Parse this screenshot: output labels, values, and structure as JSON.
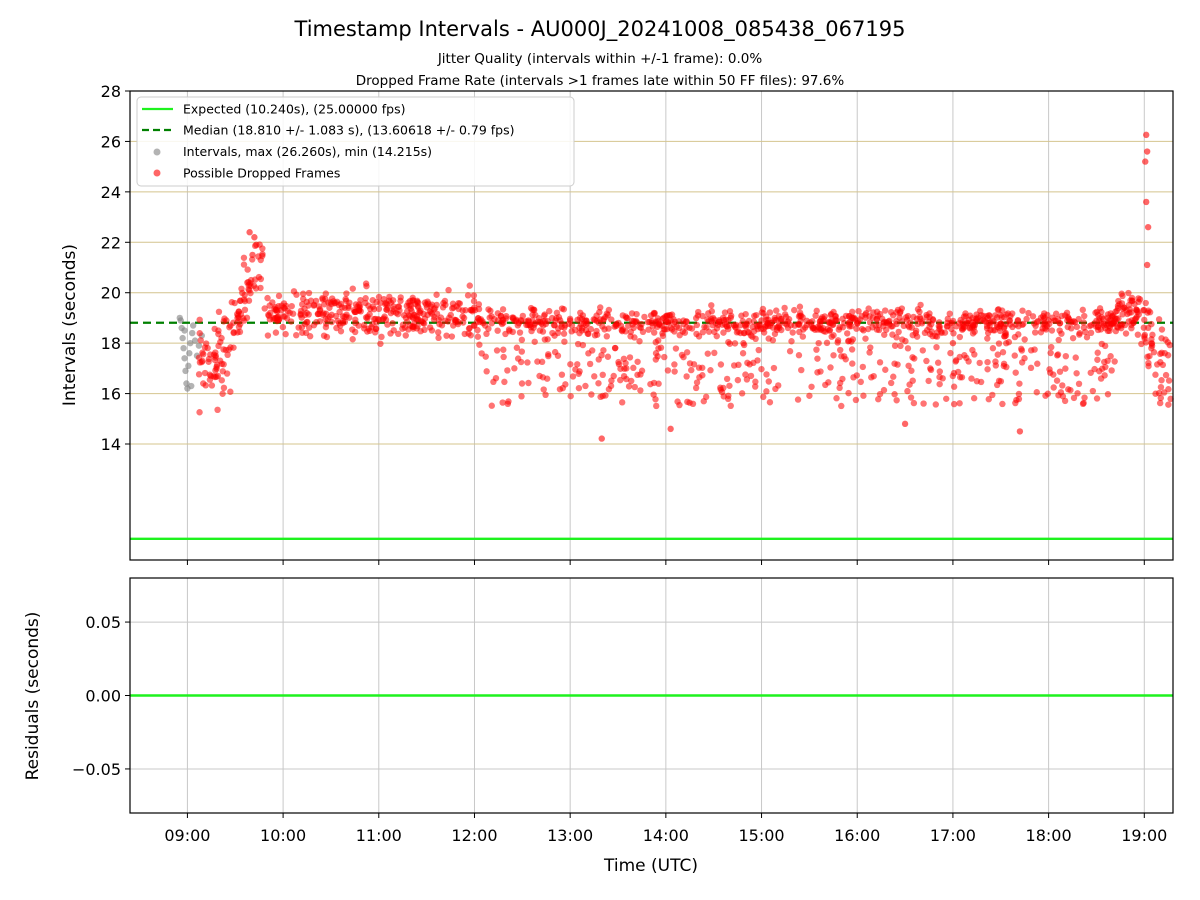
{
  "chart_data": [
    {
      "type": "scatter",
      "title": "Timestamp Intervals - AU000J_20241008_085438_067195",
      "subtitle_lines": [
        "Jitter Quality (intervals within +/-1 frame): 0.0%",
        "Dropped Frame Rate (intervals >1 frames late within 50 FF files): 97.6%"
      ],
      "xlabel": "",
      "ylabel": "Intervals (seconds)",
      "xlim_hours": [
        8.4,
        19.3
      ],
      "ylim": [
        9.4,
        28
      ],
      "yticks": [
        14,
        16,
        18,
        20,
        22,
        24,
        26,
        28
      ],
      "xticks_hours": [
        9,
        10,
        11,
        12,
        13,
        14,
        15,
        16,
        17,
        18,
        19
      ],
      "grid": "on",
      "hgrid_color": "#d4c48e",
      "vgrid_color": "#c8c8c8",
      "legend_placement": "top-left",
      "legend": [
        "Expected (10.240s), (25.00000 fps)",
        "Median (18.810 +/- 1.083 s), (13.60618 +/- 0.79 fps)",
        "Intervals, max (26.260s), min (14.215s)",
        "Possible Dropped Frames"
      ],
      "expected_interval": 10.24,
      "median_interval": 18.81,
      "colors": {
        "expected": "#1ef21e",
        "median": "#008000",
        "intervals": "#808080",
        "dropped": "#ff0000"
      },
      "series": [
        {
          "name": "Intervals, max (26.260s), min (14.215s)",
          "points": [
            [
              8.93,
              18.9
            ],
            [
              8.94,
              18.6
            ],
            [
              8.95,
              18.2
            ],
            [
              8.96,
              17.8
            ],
            [
              8.97,
              17.4
            ],
            [
              8.98,
              16.9
            ],
            [
              8.99,
              16.4
            ],
            [
              9.0,
              16.2
            ],
            [
              9.01,
              17.1
            ],
            [
              9.02,
              17.6
            ],
            [
              9.03,
              18.0
            ],
            [
              9.05,
              18.4
            ],
            [
              9.06,
              18.7
            ],
            [
              9.08,
              18.1
            ],
            [
              9.1,
              17.5
            ],
            [
              9.12,
              17.9
            ],
            [
              9.15,
              18.3
            ],
            [
              8.92,
              19.0
            ],
            [
              8.97,
              18.5
            ],
            [
              9.04,
              16.3
            ]
          ]
        },
        {
          "name": "Possible Dropped Frames",
          "summary": "dense band of interval values roughly 14.2 s to 22.4 s from about 09:10 to 19:15 UTC, spikes near 09:40 (about 22.4 s) and 19:02 (up to 26.26 s)",
          "points": [
            [
              9.65,
              22.4
            ],
            [
              9.7,
              22.2
            ],
            [
              9.72,
              21.9
            ],
            [
              9.68,
              21.5
            ],
            [
              19.02,
              26.26
            ],
            [
              19.03,
              25.6
            ],
            [
              19.01,
              25.2
            ],
            [
              19.02,
              23.6
            ],
            [
              19.04,
              22.6
            ],
            [
              19.03,
              21.1
            ],
            [
              13.33,
              14.215
            ],
            [
              14.05,
              14.6
            ],
            [
              16.5,
              14.8
            ],
            [
              17.7,
              14.5
            ],
            [
              12.0,
              18.7
            ],
            [
              13.0,
              18.9
            ],
            [
              15.0,
              18.9
            ],
            [
              16.0,
              18.8
            ],
            [
              17.0,
              18.0
            ],
            [
              18.0,
              18.9
            ]
          ]
        }
      ]
    },
    {
      "type": "line",
      "title": "",
      "xlabel": "Time (UTC)",
      "ylabel": "Residuals (seconds)",
      "ylim": [
        -0.08,
        0.08
      ],
      "yticks": [
        0.05,
        0.0,
        -0.05
      ],
      "ytick_labels": [
        "0.05",
        "0.00",
        "−0.05"
      ],
      "xticks_hours": [
        9,
        10,
        11,
        12,
        13,
        14,
        15,
        16,
        17,
        18,
        19
      ],
      "xtick_labels": [
        "09:00",
        "10:00",
        "11:00",
        "12:00",
        "13:00",
        "14:00",
        "15:00",
        "16:00",
        "17:00",
        "18:00",
        "19:00"
      ],
      "series": [
        {
          "name": "",
          "x": [
            8.4,
            19.3
          ],
          "y": [
            0.0,
            0.0
          ],
          "color": "#1ef21e"
        }
      ]
    }
  ]
}
